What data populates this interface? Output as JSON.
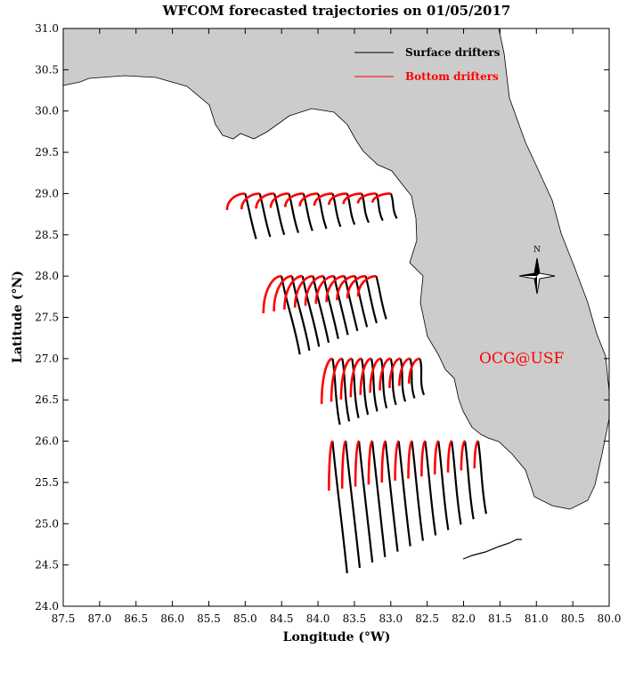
{
  "title": "WFCOM forecasted trajectories on 01/05/2017",
  "xlabel": "Longitude (°W)",
  "ylabel": "Latitude (°N)",
  "credit": "OCG@USF",
  "compass_label": "N",
  "colors": {
    "land": "#cccccc",
    "surface": "#000000",
    "bottom": "#ff0000",
    "credit": "#ff0000"
  },
  "legend": [
    {
      "label": "Surface drifters",
      "color": "#000000"
    },
    {
      "label": "Bottom drifters",
      "color": "#ff0000"
    }
  ],
  "chart_data": {
    "type": "line",
    "xlim": [
      87.5,
      80.0
    ],
    "ylim": [
      24.0,
      31.0
    ],
    "xticks": [
      "87.5",
      "87.0",
      "86.5",
      "86.0",
      "85.5",
      "85.0",
      "84.5",
      "84.0",
      "83.5",
      "83.0",
      "82.5",
      "82.0",
      "81.5",
      "81.0",
      "80.5",
      "80.0"
    ],
    "yticks": [
      "24.0",
      "24.5",
      "25.0",
      "25.5",
      "26.0",
      "26.5",
      "27.0",
      "27.5",
      "28.0",
      "28.5",
      "29.0",
      "29.5",
      "30.0",
      "30.5",
      "31.0"
    ],
    "release_rows": [
      {
        "lat": 29.0,
        "lon_start": 85.0,
        "lon_end": 83.0,
        "count": 11,
        "surface_lat_end": 28.45,
        "surface_drift_lon": 0.15,
        "bottom_lat_end": 28.8,
        "bottom_drift_lon": -0.25
      },
      {
        "lat": 28.0,
        "lon_start": 84.5,
        "lon_end": 83.2,
        "count": 10,
        "surface_lat_end": 27.05,
        "surface_drift_lon": 0.25,
        "bottom_lat_end": 27.55,
        "bottom_drift_lon": -0.25
      },
      {
        "lat": 27.0,
        "lon_start": 83.8,
        "lon_end": 82.6,
        "count": 10,
        "surface_lat_end": 26.2,
        "surface_drift_lon": 0.1,
        "bottom_lat_end": 26.45,
        "bottom_drift_lon": -0.15
      },
      {
        "lat": 26.0,
        "lon_start": 83.8,
        "lon_end": 81.8,
        "count": 12,
        "surface_lat_end": 24.4,
        "surface_drift_lon": 0.2,
        "bottom_lat_end": 25.4,
        "bottom_drift_lon": -0.05
      }
    ]
  }
}
